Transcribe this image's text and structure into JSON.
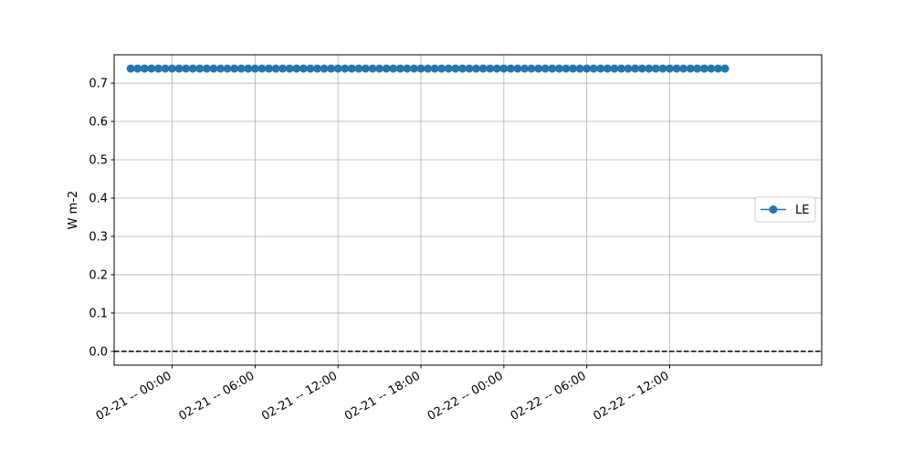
{
  "chart_data": {
    "type": "line",
    "title": "",
    "xlabel": "",
    "ylabel": "W m-2",
    "ylim": [
      -0.036,
      0.774
    ],
    "xlim": [
      "02-20 19:48",
      "02-22 23:00"
    ],
    "grid": true,
    "legend_placement": "center-right",
    "yticks": [
      0.0,
      0.1,
      0.2,
      0.3,
      0.4,
      0.5,
      0.6,
      0.7
    ],
    "ytick_labels": [
      "0.0",
      "0.1",
      "0.2",
      "0.3",
      "0.4",
      "0.5",
      "0.6",
      "0.7"
    ],
    "xticks": [
      "02-21 00:00",
      "02-21 06:00",
      "02-21 12:00",
      "02-21 18:00",
      "02-22 00:00",
      "02-22 06:00",
      "02-22 12:00"
    ],
    "xtick_labels": [
      "02-21 -- 00:00",
      "02-21 -- 06:00",
      "02-21 -- 12:00",
      "02-21 -- 18:00",
      "02-22 -- 00:00",
      "02-22 -- 06:00",
      "02-22 -- 12:00"
    ],
    "reference_line": {
      "y": 0.0,
      "style": "dashed",
      "color": "#000000"
    },
    "series": [
      {
        "name": "LE",
        "color": "#1f77b4",
        "marker": "circle",
        "x": [
          "02-20 21:00",
          "02-20 21:30",
          "02-20 22:00",
          "02-20 22:30",
          "02-20 23:00",
          "02-20 23:30",
          "02-21 00:00",
          "02-21 00:30",
          "02-21 01:00",
          "02-21 01:30",
          "02-21 02:00",
          "02-21 02:30",
          "02-21 03:00",
          "02-21 03:30",
          "02-21 04:00",
          "02-21 04:30",
          "02-21 05:00",
          "02-21 05:30",
          "02-21 06:00",
          "02-21 06:30",
          "02-21 07:00",
          "02-21 07:30",
          "02-21 08:00",
          "02-21 08:30",
          "02-21 09:00",
          "02-21 09:30",
          "02-21 10:00",
          "02-21 10:30",
          "02-21 11:00",
          "02-21 11:30",
          "02-21 12:00",
          "02-21 12:30",
          "02-21 13:00",
          "02-21 13:30",
          "02-21 14:00",
          "02-21 14:30",
          "02-21 15:00",
          "02-21 15:30",
          "02-21 16:00",
          "02-21 16:30",
          "02-21 17:00",
          "02-21 17:30",
          "02-21 18:00",
          "02-21 18:30",
          "02-21 19:00",
          "02-21 19:30",
          "02-21 20:00",
          "02-21 20:30",
          "02-21 21:00",
          "02-21 21:30",
          "02-21 22:00",
          "02-21 22:30",
          "02-21 23:00",
          "02-21 23:30",
          "02-22 00:00",
          "02-22 00:30",
          "02-22 01:00",
          "02-22 01:30",
          "02-22 02:00",
          "02-22 02:30",
          "02-22 03:00",
          "02-22 03:30",
          "02-22 04:00",
          "02-22 04:30",
          "02-22 05:00",
          "02-22 05:30",
          "02-22 06:00",
          "02-22 06:30",
          "02-22 07:00",
          "02-22 07:30",
          "02-22 08:00",
          "02-22 08:30",
          "02-22 09:00",
          "02-22 09:30",
          "02-22 10:00",
          "02-22 10:30",
          "02-22 11:00",
          "02-22 11:30",
          "02-22 12:00",
          "02-22 12:30",
          "02-22 13:00",
          "02-22 13:30",
          "02-22 14:00",
          "02-22 14:30",
          "02-22 15:00",
          "02-22 15:30",
          "02-22 16:00"
        ],
        "values": [
          0.738,
          0.738,
          0.738,
          0.738,
          0.738,
          0.738,
          0.738,
          0.738,
          0.738,
          0.738,
          0.738,
          0.738,
          0.738,
          0.738,
          0.738,
          0.738,
          0.738,
          0.738,
          0.738,
          0.738,
          0.738,
          0.738,
          0.738,
          0.738,
          0.738,
          0.738,
          0.738,
          0.738,
          0.738,
          0.738,
          0.738,
          0.738,
          0.738,
          0.738,
          0.738,
          0.738,
          0.738,
          0.738,
          0.738,
          0.738,
          0.738,
          0.738,
          0.738,
          0.738,
          0.738,
          0.738,
          0.738,
          0.738,
          0.738,
          0.738,
          0.738,
          0.738,
          0.738,
          0.738,
          0.738,
          0.738,
          0.738,
          0.738,
          0.738,
          0.738,
          0.738,
          0.738,
          0.738,
          0.738,
          0.738,
          0.738,
          0.738,
          0.738,
          0.738,
          0.738,
          0.738,
          0.738,
          0.738,
          0.738,
          0.738,
          0.738,
          0.738,
          0.738,
          0.738,
          0.738,
          0.738,
          0.738,
          0.738,
          0.738,
          0.738,
          0.738,
          0.738
        ]
      }
    ]
  }
}
